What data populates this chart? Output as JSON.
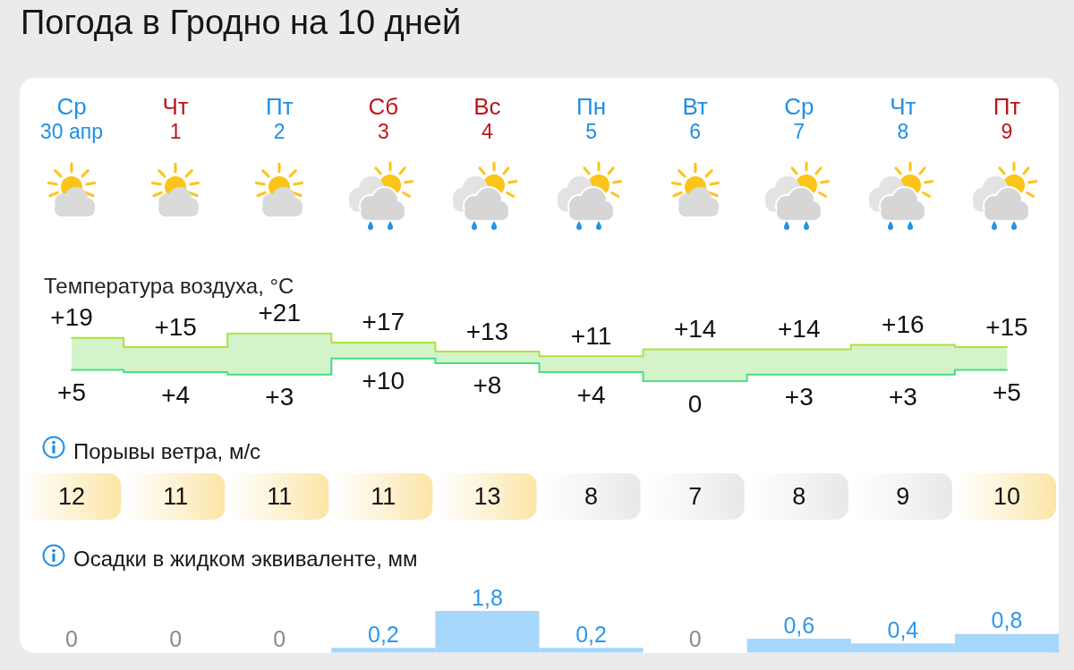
{
  "chart_data": [
    {
      "type": "step",
      "title": "Погода в Гродно на 10 дней",
      "subtitle": "Температура воздуха, °C",
      "categories": [
        "Ср\n30 апр",
        "Чт\n1",
        "Пт\n2",
        "Сб\n3",
        "Вс\n4",
        "Пн\n5",
        "Вт\n6",
        "Ср\n7",
        "Чт\n8",
        "Пт\n9"
      ],
      "series": [
        {
          "color": "#b0e03c",
          "values": [
            19,
            15,
            21,
            17,
            13,
            11,
            14,
            14,
            16,
            15
          ],
          "value_labels": [
            "+19",
            "+15",
            "+21",
            "+17",
            "+13",
            "+11",
            "+14",
            "+14",
            "+16",
            "+15"
          ],
          "lower": [
            5,
            4,
            3,
            10,
            8,
            4,
            0,
            3,
            3,
            5
          ],
          "upper": [
            19,
            15,
            21,
            17,
            13,
            11,
            14,
            14,
            16,
            15
          ]
        },
        {
          "color": "#45de80",
          "values": [
            5,
            4,
            3,
            10,
            8,
            4,
            0,
            3,
            3,
            5
          ],
          "value_labels": [
            "+5",
            "+4",
            "+3",
            "+10",
            "+8",
            "+4",
            "0",
            "+3",
            "+3",
            "+5"
          ]
        }
      ],
      "marker": "none",
      "tick_labels": "x"
    },
    {
      "type": "other",
      "title": "Порывы ветра, м/с",
      "categories": [
        null,
        null,
        null,
        null,
        null,
        null,
        null,
        null,
        null,
        null
      ],
      "values": [
        12,
        11,
        11,
        11,
        13,
        8,
        7,
        8,
        9,
        10
      ],
      "data_labels": true
    },
    {
      "type": "bar",
      "title": "Осадки в жидком эквиваленте, мм",
      "categories": [
        null,
        null,
        null,
        null,
        null,
        null,
        null,
        null,
        null,
        null
      ],
      "values": [
        0,
        0,
        0,
        0.2,
        1.8,
        0.2,
        0,
        0.6,
        0.4,
        0.8
      ],
      "value_labels": [
        "0",
        "0",
        "0",
        "0,2",
        "1,8",
        "0,2",
        "0",
        "0,6",
        "0,4",
        "0,8"
      ],
      "color": "#a7d6fb",
      "tick_labels": false
    }
  ]
}
